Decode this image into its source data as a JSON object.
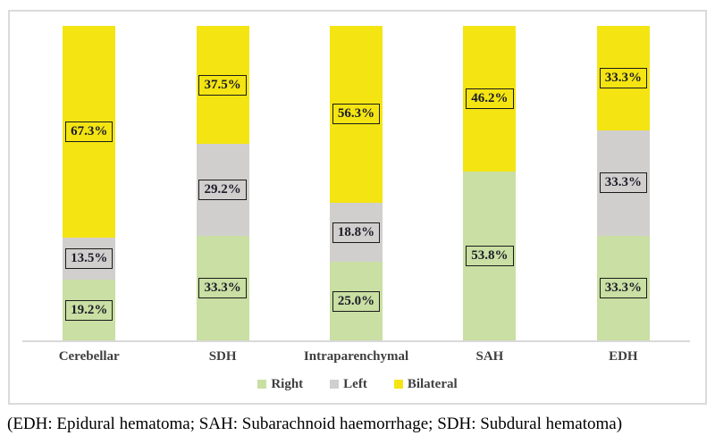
{
  "chart_data": {
    "type": "bar",
    "subtype": "stacked-100-percent-column",
    "title": "",
    "xlabel": "",
    "ylabel": "",
    "ylim": [
      0,
      100
    ],
    "grid": false,
    "categories": [
      "Cerebellar",
      "SDH",
      "Intraparenchymal",
      "SAH",
      "EDH"
    ],
    "series": [
      {
        "name": "Right",
        "color": "#c9dfa3",
        "values": [
          19.2,
          33.3,
          25.0,
          53.8,
          33.3
        ],
        "labels": [
          "19.2%",
          "33.3%",
          "25.0%",
          "53.8%",
          "33.3%"
        ]
      },
      {
        "name": "Left",
        "color": "#d1cfce",
        "values": [
          13.5,
          29.2,
          18.8,
          0,
          33.3
        ],
        "labels": [
          "13.5%",
          "29.2%",
          "18.8%",
          "",
          "33.3%"
        ]
      },
      {
        "name": "Bilateral",
        "color": "#f4e512",
        "values": [
          67.3,
          37.5,
          56.3,
          46.2,
          33.3
        ],
        "labels": [
          "67.3%",
          "37.5%",
          "56.3%",
          "46.2%",
          "33.3%"
        ]
      }
    ],
    "legend": {
      "position": "bottom",
      "entries": [
        "Right",
        "Left",
        "Bilateral"
      ]
    }
  },
  "caption": "(EDH: Epidural hematoma; SAH: Subarachnoid haemorrhage; SDH: Subdural hematoma)"
}
